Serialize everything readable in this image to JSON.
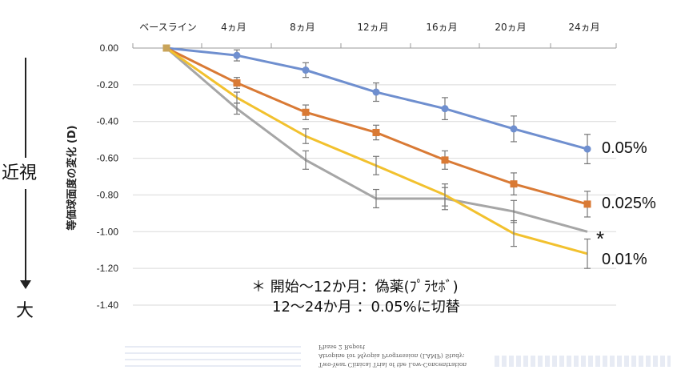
{
  "chart_data": {
    "type": "line",
    "ylabel": "等価球面度の変化 (D)",
    "categories": [
      "ベースライン",
      "4ヵ月",
      "8ヵ月",
      "12ヵ月",
      "16ヵ月",
      "20ヵ月",
      "24ヵ月"
    ],
    "ylim": [
      -1.4,
      0.0
    ],
    "yticks": [
      "0.00",
      "-0.20",
      "-0.40",
      "-0.60",
      "-0.80",
      "-1.00",
      "-1.20",
      "-1.40"
    ],
    "grid": true,
    "series": [
      {
        "name": "0.05%",
        "color": "#6f8fcf",
        "marker": "circle",
        "values": [
          0.0,
          -0.04,
          -0.12,
          -0.24,
          -0.33,
          -0.44,
          -0.55
        ],
        "err": [
          0,
          0.03,
          0.04,
          0.05,
          0.06,
          0.07,
          0.08
        ]
      },
      {
        "name": "0.025%",
        "color": "#d97a35",
        "marker": "square",
        "values": [
          0.0,
          -0.19,
          -0.35,
          -0.46,
          -0.61,
          -0.74,
          -0.85
        ],
        "err": [
          0,
          0.03,
          0.04,
          0.04,
          0.05,
          0.06,
          0.07
        ]
      },
      {
        "name": "*",
        "color": "#a6a6a6",
        "marker": "none",
        "values": [
          0.0,
          -0.33,
          -0.61,
          -0.82,
          -0.82,
          -0.89,
          -1.0
        ],
        "err": [
          0,
          0.03,
          0.05,
          0.05,
          0.06,
          0.06,
          0.0
        ]
      },
      {
        "name": "0.01%",
        "color": "#f2c12e",
        "marker": "none",
        "values": [
          0.0,
          -0.27,
          -0.48,
          -0.64,
          -0.8,
          -1.01,
          -1.12
        ],
        "err": [
          0,
          0.03,
          0.04,
          0.05,
          0.06,
          0.07,
          0.08
        ]
      }
    ]
  },
  "side_labels": {
    "myopia": "近視",
    "large": "大"
  },
  "note": {
    "line1": "＊ 開始〜12か月：偽薬(ﾌﾟﾗｾﾎﾞ)",
    "line2": "12〜24か月 ：0.05%に切替"
  },
  "citation": {
    "line1": "Two-Year Clinical Trial of the Low-Concentration",
    "line2": "Atropine for Myopia Progression (LAMP) Study:",
    "line3": "Phase 2 Report"
  }
}
